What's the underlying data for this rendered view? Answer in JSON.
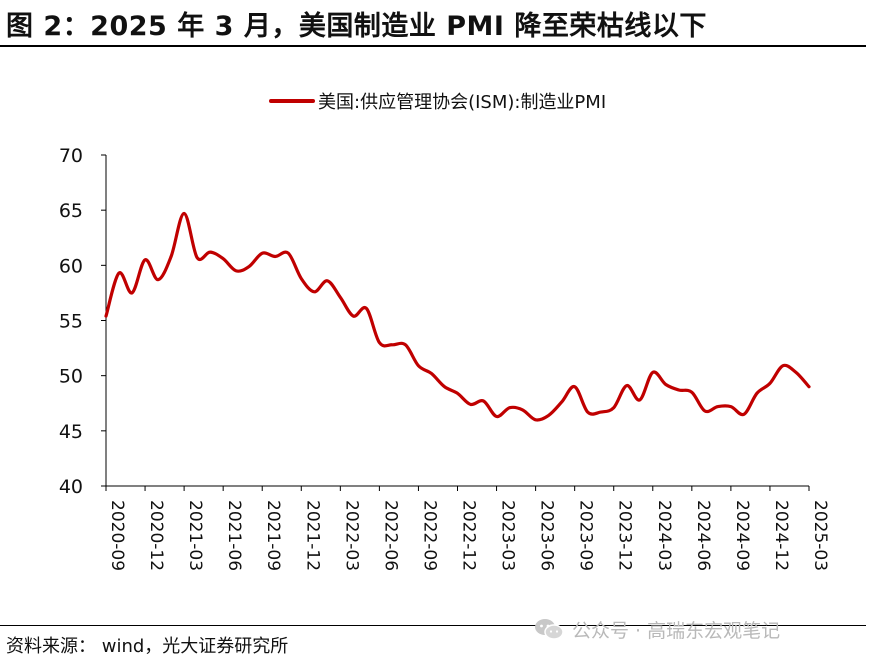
{
  "header": {
    "title": "图 2：2025 年 3 月，美国制造业 PMI 降至荣枯线以下"
  },
  "footer": {
    "source": "资料来源： wind，光大证券研究所",
    "watermark": "公众号 · 高瑞东宏观笔记",
    "watermark_icon": "wechat-icon"
  },
  "colors": {
    "series": "#c00000",
    "axis": "#000000"
  },
  "chart_data": {
    "type": "line",
    "title": "",
    "xlabel": "",
    "ylabel": "",
    "ylim": [
      40,
      70
    ],
    "yticks": [
      40,
      45,
      50,
      55,
      60,
      65,
      70
    ],
    "grid": false,
    "legend_position": "top",
    "x": [
      "2020-09",
      "2020-10",
      "2020-11",
      "2020-12",
      "2021-01",
      "2021-02",
      "2021-03",
      "2021-04",
      "2021-05",
      "2021-06",
      "2021-07",
      "2021-08",
      "2021-09",
      "2021-10",
      "2021-11",
      "2021-12",
      "2022-01",
      "2022-02",
      "2022-03",
      "2022-04",
      "2022-05",
      "2022-06",
      "2022-07",
      "2022-08",
      "2022-09",
      "2022-10",
      "2022-11",
      "2022-12",
      "2023-01",
      "2023-02",
      "2023-03",
      "2023-04",
      "2023-05",
      "2023-06",
      "2023-07",
      "2023-08",
      "2023-09",
      "2023-10",
      "2023-11",
      "2023-12",
      "2024-01",
      "2024-02",
      "2024-03",
      "2024-04",
      "2024-05",
      "2024-06",
      "2024-07",
      "2024-08",
      "2024-09",
      "2024-10",
      "2024-11",
      "2024-12",
      "2025-01",
      "2025-02",
      "2025-03"
    ],
    "xtick_labels": [
      "2020-09",
      "2020-12",
      "2021-03",
      "2021-06",
      "2021-09",
      "2021-12",
      "2022-03",
      "2022-06",
      "2022-09",
      "2022-12",
      "2023-03",
      "2023-06",
      "2023-09",
      "2023-12",
      "2024-03",
      "2024-06",
      "2024-09",
      "2024-12",
      "2025-03"
    ],
    "series": [
      {
        "name": "美国:供应管理协会(ISM):制造业PMI",
        "values": [
          55.4,
          59.3,
          57.5,
          60.5,
          58.7,
          60.8,
          64.7,
          60.7,
          61.2,
          60.6,
          59.5,
          59.9,
          61.1,
          60.8,
          61.1,
          58.8,
          57.6,
          58.6,
          57.1,
          55.4,
          56.1,
          53.0,
          52.8,
          52.8,
          50.9,
          50.2,
          49.0,
          48.4,
          47.4,
          47.7,
          46.3,
          47.1,
          46.9,
          46.0,
          46.4,
          47.6,
          49.0,
          46.7,
          46.7,
          47.1,
          49.1,
          47.8,
          50.3,
          49.2,
          48.7,
          48.5,
          46.8,
          47.2,
          47.2,
          46.5,
          48.4,
          49.3,
          50.9,
          50.3,
          49.0
        ]
      }
    ]
  }
}
